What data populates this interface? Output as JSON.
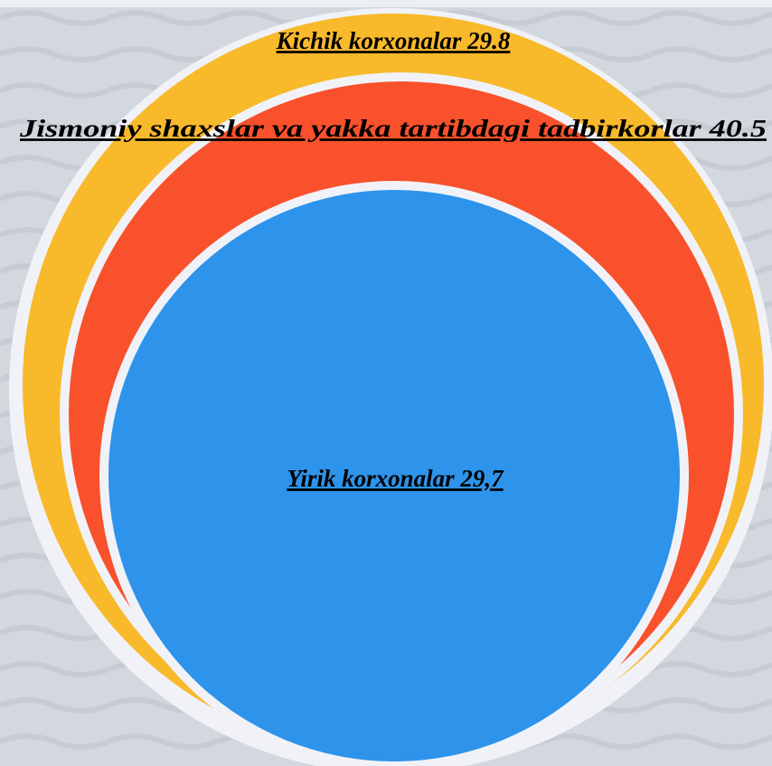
{
  "circles": [
    {
      "label": "Kichik korxonalar 29.8"
    },
    {
      "label": "Jismoniy shaxslar va yakka tartibdagi tadbirkorlar 40.5"
    },
    {
      "label": "Yirik korxonalar 29,7"
    }
  ]
}
